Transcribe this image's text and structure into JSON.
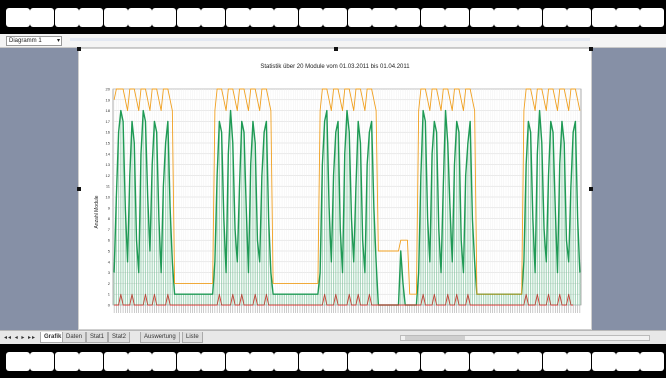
{
  "formula_bar": {
    "cell_ref": "Diagramm 1"
  },
  "sheet_tabs": {
    "tabs": [
      {
        "label": "Grafik"
      },
      {
        "label": "Daten"
      },
      {
        "label": "Stat1"
      },
      {
        "label": "Stat2"
      },
      {
        "label": "Auswertung"
      },
      {
        "label": "Liste"
      }
    ]
  },
  "colors": {
    "inuse_series": "#1f9a55",
    "available_series": "#f0a020",
    "error_series": "#e03030",
    "background_panel": "#8690a6"
  },
  "chart_data": {
    "type": "line",
    "title": "Statistik über 20 Module vom 01.03.2011 bis 01.04.2011",
    "ylabel": "Anzahl Module",
    "ylim": [
      0,
      20
    ],
    "yticks": [
      0,
      1,
      2,
      3,
      4,
      5,
      6,
      7,
      8,
      9,
      10,
      11,
      12,
      13,
      14,
      15,
      16,
      17,
      18,
      19,
      20
    ],
    "grid": true,
    "series": [
      {
        "values": [
          3,
          10,
          16,
          18,
          17,
          9,
          4,
          12,
          17,
          15,
          6,
          3,
          14,
          18,
          17,
          10,
          5,
          13,
          17,
          16,
          8,
          3,
          11,
          15,
          17,
          9,
          4,
          1,
          1,
          1,
          1,
          1,
          1,
          1,
          1,
          1,
          1,
          1,
          1,
          1,
          1,
          1,
          1,
          1,
          1,
          4,
          12,
          17,
          16,
          8,
          3,
          14,
          18,
          15,
          7,
          4,
          11,
          17,
          16,
          9,
          3,
          13,
          17,
          15,
          6,
          4,
          12,
          16,
          17,
          8,
          3,
          1,
          1,
          1,
          1,
          1,
          1,
          1,
          1,
          1,
          1,
          1,
          1,
          1,
          1,
          1,
          1,
          1,
          1,
          1,
          1,
          1,
          3,
          13,
          17,
          18,
          9,
          4,
          12,
          16,
          17,
          7,
          3,
          14,
          18,
          16,
          8,
          4,
          11,
          17,
          15,
          6,
          3,
          13,
          16,
          17,
          9,
          4,
          0,
          0,
          0,
          0,
          0,
          0,
          0,
          0,
          0,
          0,
          5,
          2,
          0,
          0,
          0,
          0,
          0,
          0,
          3,
          12,
          18,
          17,
          8,
          4,
          14,
          17,
          16,
          7,
          3,
          11,
          18,
          15,
          9,
          4,
          13,
          17,
          16,
          6,
          3,
          12,
          15,
          17,
          8,
          4,
          1,
          1,
          1,
          1,
          1,
          1,
          1,
          1,
          1,
          1,
          1,
          1,
          1,
          1,
          1,
          1,
          1,
          1,
          1,
          1,
          1,
          4,
          13,
          17,
          16,
          8,
          3,
          14,
          18,
          15,
          7,
          4,
          12,
          17,
          16,
          9,
          3,
          13,
          17,
          15,
          6,
          4,
          11,
          16,
          17,
          8,
          3
        ]
      },
      {
        "values": [
          19,
          20,
          20,
          20,
          20,
          19,
          18,
          20,
          20,
          20,
          19,
          18,
          20,
          20,
          20,
          19,
          18,
          20,
          20,
          20,
          19,
          18,
          20,
          20,
          20,
          19,
          18,
          2,
          2,
          2,
          2,
          2,
          2,
          2,
          2,
          2,
          2,
          2,
          2,
          2,
          2,
          2,
          2,
          2,
          2,
          18,
          20,
          20,
          20,
          19,
          18,
          20,
          20,
          20,
          19,
          18,
          20,
          20,
          20,
          19,
          18,
          20,
          20,
          20,
          19,
          18,
          20,
          20,
          20,
          19,
          18,
          2,
          2,
          2,
          2,
          2,
          2,
          2,
          2,
          2,
          2,
          2,
          2,
          2,
          2,
          2,
          2,
          2,
          2,
          2,
          2,
          2,
          18,
          20,
          20,
          20,
          19,
          18,
          20,
          20,
          20,
          19,
          18,
          20,
          20,
          20,
          19,
          18,
          20,
          20,
          20,
          19,
          18,
          20,
          20,
          20,
          19,
          18,
          5,
          5,
          5,
          5,
          5,
          5,
          5,
          5,
          5,
          5,
          6,
          6,
          6,
          6,
          1,
          1,
          1,
          1,
          18,
          20,
          20,
          20,
          19,
          18,
          20,
          20,
          20,
          19,
          18,
          20,
          20,
          20,
          19,
          18,
          20,
          20,
          20,
          19,
          18,
          20,
          20,
          20,
          19,
          18,
          1,
          1,
          1,
          1,
          1,
          1,
          1,
          1,
          1,
          1,
          1,
          1,
          1,
          1,
          1,
          1,
          1,
          1,
          1,
          1,
          1,
          18,
          20,
          20,
          20,
          19,
          18,
          20,
          20,
          20,
          19,
          18,
          20,
          20,
          20,
          19,
          18,
          20,
          20,
          20,
          19,
          18,
          20,
          20,
          20,
          19,
          18
        ]
      },
      {
        "values": [
          0,
          0,
          0,
          1,
          0,
          0,
          0,
          0,
          1,
          0,
          0,
          0,
          0,
          0,
          1,
          0,
          0,
          0,
          1,
          0,
          0,
          0,
          0,
          0,
          1,
          0,
          0,
          0,
          0,
          0,
          0,
          0,
          0,
          0,
          0,
          0,
          0,
          0,
          0,
          0,
          0,
          0,
          0,
          0,
          0,
          0,
          0,
          1,
          0,
          0,
          0,
          0,
          0,
          1,
          0,
          0,
          0,
          1,
          0,
          0,
          0,
          0,
          0,
          1,
          0,
          0,
          0,
          0,
          1,
          0,
          0,
          0,
          0,
          0,
          0,
          0,
          0,
          0,
          0,
          0,
          0,
          0,
          0,
          0,
          0,
          0,
          0,
          0,
          0,
          0,
          0,
          0,
          0,
          0,
          1,
          0,
          0,
          0,
          0,
          1,
          0,
          0,
          0,
          0,
          0,
          1,
          0,
          0,
          0,
          1,
          0,
          0,
          0,
          0,
          1,
          0,
          0,
          0,
          0,
          0,
          0,
          0,
          0,
          0,
          0,
          0,
          0,
          0,
          0,
          0,
          0,
          0,
          0,
          0,
          0,
          0,
          0,
          0,
          1,
          0,
          0,
          0,
          0,
          1,
          0,
          0,
          0,
          0,
          0,
          1,
          0,
          0,
          0,
          1,
          0,
          0,
          0,
          0,
          1,
          0,
          0,
          0,
          0,
          0,
          0,
          0,
          0,
          0,
          0,
          0,
          0,
          0,
          0,
          0,
          0,
          0,
          0,
          0,
          0,
          0,
          0,
          0,
          0,
          0,
          1,
          0,
          0,
          0,
          0,
          1,
          0,
          0,
          0,
          0,
          1,
          0,
          0,
          0,
          0,
          1,
          0,
          0,
          0,
          1,
          0,
          0
        ]
      }
    ]
  }
}
